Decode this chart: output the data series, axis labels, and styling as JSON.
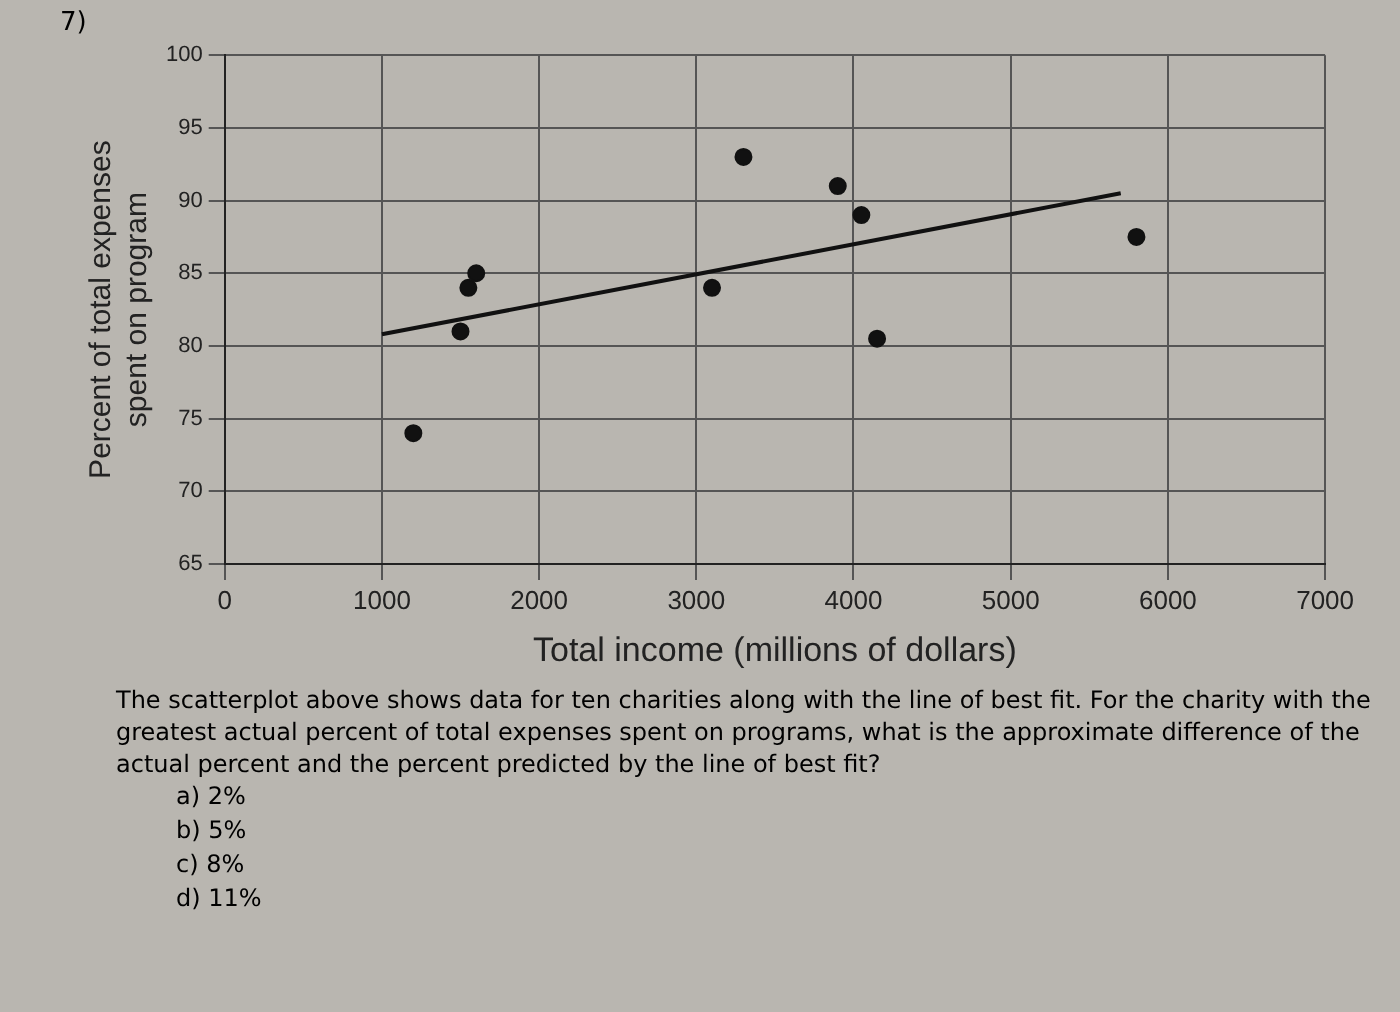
{
  "chart_data": {
    "type": "scatter",
    "xlabel": "Total income (millions of dollars)",
    "ylabel": "Percent of total expenses\nspent on program",
    "series": [
      {
        "color": "#111111",
        "x": [
          1200,
          1500,
          1550,
          1600,
          3100,
          3300,
          3900,
          4050,
          4150,
          5800
        ],
        "values": [
          74,
          81,
          84,
          85,
          84,
          93,
          91,
          89,
          80.5,
          87.5
        ]
      },
      {
        "type": "line",
        "color": "#111111",
        "x": [
          1000,
          5700
        ],
        "values": [
          80.8,
          90.5
        ],
        "marker": "none"
      }
    ],
    "xlim": [
      0,
      7000
    ],
    "xticks": [
      0,
      1000,
      2000,
      3000,
      4000,
      5000,
      6000,
      7000
    ],
    "ylim": [
      65,
      100
    ],
    "yticks": [
      65,
      70,
      75,
      80,
      85,
      90,
      95,
      100
    ],
    "grid": true,
    "marker": "circle",
    "annotations": [
      "7)",
      "The scatterplot above shows data for ten charities along with the line of best fit. For the charity with the greatest actual percent of total expenses spent on programs, what is the approximate difference of the actual percent and the percent predicted by the line of best fit?",
      "a) 2%",
      "b) 5%",
      "c) 8%",
      "d) 11%"
    ]
  }
}
